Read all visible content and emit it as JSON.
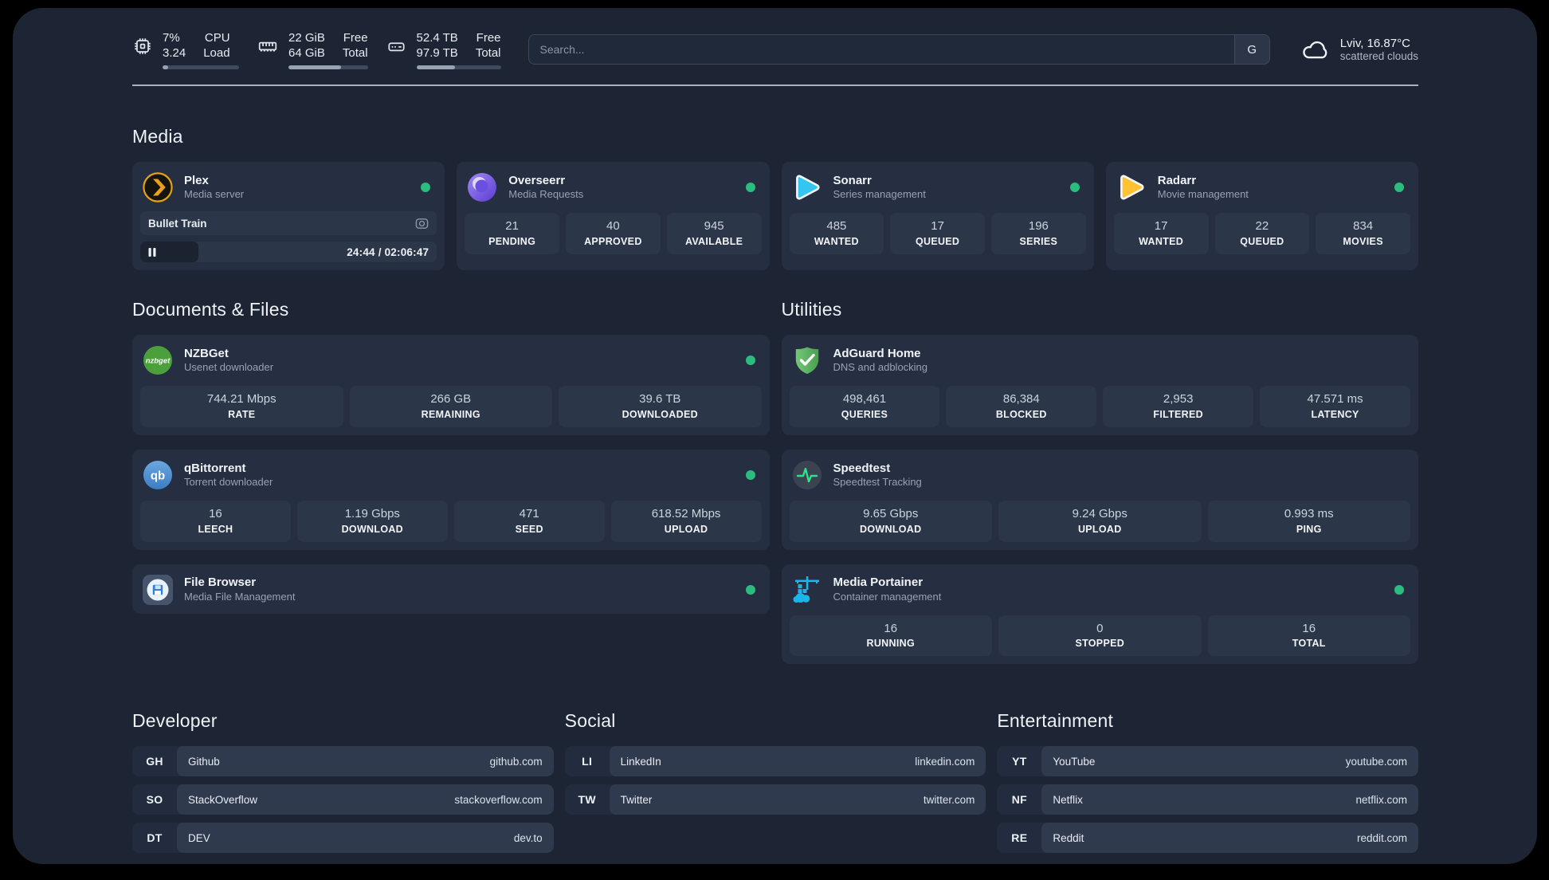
{
  "header": {
    "system": [
      {
        "icon": "cpu-icon",
        "value_top": "7%",
        "value_bottom": "3.24",
        "label_top": "CPU",
        "label_bottom": "Load",
        "progress_percent": 7
      },
      {
        "icon": "ram-icon",
        "value_top": "22 GiB",
        "value_bottom": "64 GiB",
        "label_top": "Free",
        "label_bottom": "Total",
        "progress_percent": 66
      },
      {
        "icon": "disk-icon",
        "value_top": "52.4 TB",
        "value_bottom": "97.9 TB",
        "label_top": "Free",
        "label_bottom": "Total",
        "progress_percent": 46
      }
    ],
    "search": {
      "placeholder": "Search...",
      "engine_button": "G"
    },
    "weather": {
      "location": "Lviv, 16.87°C",
      "condition": "scattered clouds"
    }
  },
  "sections": {
    "media": {
      "title": "Media",
      "apps": [
        {
          "name": "Plex",
          "description": "Media server",
          "icon": "plex",
          "status_dot": true,
          "now_playing": {
            "title": "Bullet Train",
            "time_display": "24:44 / 02:06:47",
            "progress_percent": 19.5
          }
        },
        {
          "name": "Overseerr",
          "description": "Media Requests",
          "icon": "overseerr",
          "status_dot": true,
          "stats": [
            {
              "value": "21",
              "label": "PENDING"
            },
            {
              "value": "40",
              "label": "APPROVED"
            },
            {
              "value": "945",
              "label": "AVAILABLE"
            }
          ]
        },
        {
          "name": "Sonarr",
          "description": "Series management",
          "icon": "sonarr",
          "status_dot": true,
          "stats": [
            {
              "value": "485",
              "label": "WANTED"
            },
            {
              "value": "17",
              "label": "QUEUED"
            },
            {
              "value": "196",
              "label": "SERIES"
            }
          ]
        },
        {
          "name": "Radarr",
          "description": "Movie management",
          "icon": "radarr",
          "status_dot": true,
          "stats": [
            {
              "value": "17",
              "label": "WANTED"
            },
            {
              "value": "22",
              "label": "QUEUED"
            },
            {
              "value": "834",
              "label": "MOVIES"
            }
          ]
        }
      ]
    },
    "documents": {
      "title": "Documents & Files",
      "apps": [
        {
          "name": "NZBGet",
          "description": "Usenet downloader",
          "icon": "nzbget",
          "status_dot": true,
          "stats": [
            {
              "value": "744.21 Mbps",
              "label": "RATE"
            },
            {
              "value": "266 GB",
              "label": "REMAINING"
            },
            {
              "value": "39.6 TB",
              "label": "DOWNLOADED"
            }
          ]
        },
        {
          "name": "qBittorrent",
          "description": "Torrent downloader",
          "icon": "qbittorrent",
          "status_dot": true,
          "stats": [
            {
              "value": "16",
              "label": "LEECH"
            },
            {
              "value": "1.19 Gbps",
              "label": "DOWNLOAD"
            },
            {
              "value": "471",
              "label": "SEED"
            },
            {
              "value": "618.52 Mbps",
              "label": "UPLOAD"
            }
          ]
        },
        {
          "name": "File Browser",
          "description": "Media File Management",
          "icon": "filebrowser",
          "status_dot": true,
          "stats": []
        }
      ]
    },
    "utilities": {
      "title": "Utilities",
      "apps": [
        {
          "name": "AdGuard Home",
          "description": "DNS and adblocking",
          "icon": "adguard",
          "status_dot": false,
          "stats": [
            {
              "value": "498,461",
              "label": "QUERIES"
            },
            {
              "value": "86,384",
              "label": "BLOCKED"
            },
            {
              "value": "2,953",
              "label": "FILTERED"
            },
            {
              "value": "47.571 ms",
              "label": "LATENCY"
            }
          ]
        },
        {
          "name": "Speedtest",
          "description": "Speedtest Tracking",
          "icon": "speedtest",
          "status_dot": false,
          "stats": [
            {
              "value": "9.65 Gbps",
              "label": "DOWNLOAD"
            },
            {
              "value": "9.24 Gbps",
              "label": "UPLOAD"
            },
            {
              "value": "0.993 ms",
              "label": "PING"
            }
          ]
        },
        {
          "name": "Media Portainer",
          "description": "Container management",
          "icon": "portainer",
          "status_dot": true,
          "stats": [
            {
              "value": "16",
              "label": "RUNNING"
            },
            {
              "value": "0",
              "label": "STOPPED"
            },
            {
              "value": "16",
              "label": "TOTAL"
            }
          ]
        }
      ]
    },
    "bookmarks": [
      {
        "title": "Developer",
        "items": [
          {
            "abbr": "GH",
            "name": "Github",
            "url": "github.com"
          },
          {
            "abbr": "SO",
            "name": "StackOverflow",
            "url": "stackoverflow.com"
          },
          {
            "abbr": "DT",
            "name": "DEV",
            "url": "dev.to"
          }
        ]
      },
      {
        "title": "Social",
        "items": [
          {
            "abbr": "LI",
            "name": "LinkedIn",
            "url": "linkedin.com"
          },
          {
            "abbr": "TW",
            "name": "Twitter",
            "url": "twitter.com"
          }
        ]
      },
      {
        "title": "Entertainment",
        "items": [
          {
            "abbr": "YT",
            "name": "YouTube",
            "url": "youtube.com"
          },
          {
            "abbr": "NF",
            "name": "Netflix",
            "url": "netflix.com"
          },
          {
            "abbr": "RE",
            "name": "Reddit",
            "url": "reddit.com"
          }
        ]
      }
    ]
  },
  "colors": {
    "status_online": "#2abd7d",
    "plex_brand": "#e8a11d",
    "sonarr_brand": "#35c5f1",
    "radarr_brand": "#ffc230",
    "adguard_brand": "#5fbb64",
    "portainer_brand": "#1ab6ea"
  }
}
